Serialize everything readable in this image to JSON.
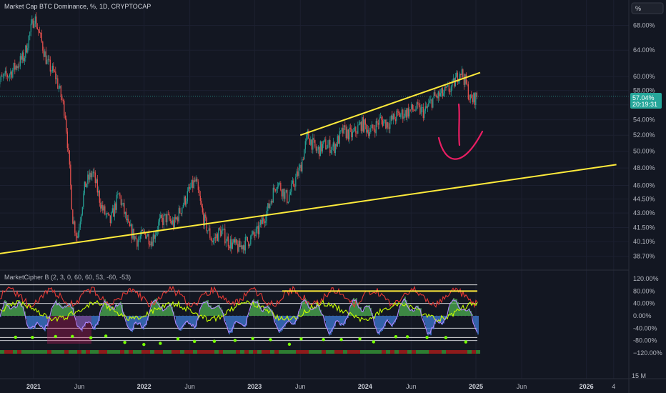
{
  "header": {
    "title": "Market Cap BTC Dominance, %, 1D, CRYPTOCAP",
    "unit_button": "%"
  },
  "price_badge": {
    "value": "57.04%",
    "countdown": "20:19:31"
  },
  "colors": {
    "background": "#131722",
    "up_candle": "#26a69a",
    "down_candle": "#ef5350",
    "trendline": "#ffeb3b",
    "annotation": "#e91e63",
    "axis_text": "#b2b5be",
    "wave_blue": "#3d7bd6",
    "wave_green": "#4caf50"
  },
  "indicator": {
    "name": "MarketCipher B (2, 3, 0, 60, 60, 53, -60, -53)",
    "levels": [
      120,
      80,
      40,
      0,
      -40,
      -80,
      -120
    ],
    "level_labels": [
      "120.00%",
      "80.00%",
      "40.00%",
      "0.00%",
      "-40.00%",
      "-80.00%",
      "−120.00%"
    ]
  },
  "volume_label": "15 M",
  "chart_data": {
    "type": "candlestick",
    "title": "Market Cap BTC Dominance, %, 1D, CRYPTOCAP",
    "ylabel": "%",
    "ylim": [
      37.5,
      70.0
    ],
    "y_scale": "log",
    "y_ticks": [
      68.0,
      64.0,
      60.0,
      58.0,
      56.0,
      54.0,
      52.0,
      50.0,
      48.0,
      46.0,
      44.5,
      43.0,
      41.5,
      40.1,
      38.7
    ],
    "y_tick_labels": [
      "68.00%",
      "64.00%",
      "60.00%",
      "58.00%",
      "56.00%",
      "54.00%",
      "52.00%",
      "50.00%",
      "48.00%",
      "46.00%",
      "44.50%",
      "43.00%",
      "41.50%",
      "40.10%",
      "38.70%"
    ],
    "x_ticks": [
      {
        "label": "2021",
        "date": "2021-01-01",
        "bold": true
      },
      {
        "label": "Jun",
        "date": "2021-06-01",
        "bold": false
      },
      {
        "label": "2022",
        "date": "2022-01-01",
        "bold": true
      },
      {
        "label": "Jun",
        "date": "2022-06-01",
        "bold": false
      },
      {
        "label": "2023",
        "date": "2023-01-01",
        "bold": true
      },
      {
        "label": "Jun",
        "date": "2023-06-01",
        "bold": false
      },
      {
        "label": "2024",
        "date": "2024-01-01",
        "bold": true
      },
      {
        "label": "Jun",
        "date": "2024-06-01",
        "bold": false
      },
      {
        "label": "2025",
        "date": "2025-01-01",
        "bold": true
      },
      {
        "label": "Jun",
        "date": "2025-06-01",
        "bold": false
      },
      {
        "label": "2026",
        "date": "2026-01-01",
        "bold": true
      },
      {
        "label": "4",
        "date": "2026-04-01",
        "bold": false
      }
    ],
    "series": [
      {
        "name": "BTC Dominance",
        "x": [
          "2020-09-01",
          "2020-10-15",
          "2020-12-01",
          "2021-01-03",
          "2021-02-15",
          "2021-03-15",
          "2021-04-15",
          "2021-05-10",
          "2021-05-25",
          "2021-06-20",
          "2021-07-15",
          "2021-08-15",
          "2021-09-10",
          "2021-10-10",
          "2021-11-10",
          "2021-12-10",
          "2022-01-05",
          "2022-01-25",
          "2022-02-20",
          "2022-03-15",
          "2022-04-10",
          "2022-05-10",
          "2022-06-01",
          "2022-06-20",
          "2022-07-15",
          "2022-08-15",
          "2022-09-10",
          "2022-10-10",
          "2022-11-10",
          "2022-12-10",
          "2023-01-10",
          "2023-02-15",
          "2023-03-15",
          "2023-04-20",
          "2023-06-01",
          "2023-06-25",
          "2023-07-25",
          "2023-08-20",
          "2023-09-20",
          "2023-10-20",
          "2023-11-20",
          "2023-12-20",
          "2024-01-20",
          "2024-02-20",
          "2024-03-15",
          "2024-04-15",
          "2024-05-15",
          "2024-06-15",
          "2024-07-15",
          "2024-08-15",
          "2024-09-15",
          "2024-10-15",
          "2024-11-10",
          "2024-11-25",
          "2024-12-15",
          "2025-01-05"
        ],
        "values": [
          59.0,
          60.5,
          63.0,
          69.5,
          62.0,
          60.0,
          55.0,
          42.5,
          40.5,
          46.0,
          47.5,
          43.5,
          42.0,
          45.0,
          41.5,
          40.2,
          41.0,
          40.2,
          42.0,
          42.5,
          41.8,
          44.0,
          45.5,
          46.5,
          42.5,
          40.1,
          41.2,
          40.0,
          39.5,
          40.2,
          41.0,
          43.5,
          46.5,
          44.5,
          48.0,
          52.0,
          50.0,
          50.8,
          50.5,
          52.5,
          52.0,
          53.5,
          52.5,
          54.0,
          53.5,
          54.5,
          55.0,
          55.5,
          55.0,
          57.0,
          57.5,
          58.5,
          61.0,
          59.5,
          56.5,
          57.2
        ]
      }
    ],
    "trendlines": [
      {
        "from": {
          "date": "2020-09-01",
          "value": 38.9
        },
        "to": {
          "date": "2026-04-10",
          "value": 48.4
        }
      },
      {
        "from": {
          "date": "2023-06-01",
          "value": 52.0
        },
        "to": {
          "date": "2025-01-15",
          "value": 60.6
        }
      }
    ]
  }
}
